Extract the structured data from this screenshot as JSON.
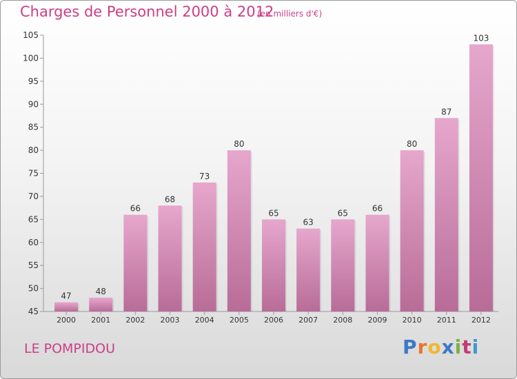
{
  "header": {
    "title": "Charges de Personnel 2000 à 2012",
    "subtitle": "(en milliers d'€)"
  },
  "footer": {
    "place": "LE POMPIDOU",
    "brand_letters": [
      "P",
      "r",
      "o",
      "x",
      "i",
      "t",
      "i"
    ],
    "brand_colors": [
      "#3c78c8",
      "#e8742a",
      "#f2b72f",
      "#3c78c8",
      "#7bb342",
      "#c43a7a",
      "#3c9ad0"
    ]
  },
  "colors": {
    "bar_top": "#e6a7cd",
    "bar_bottom": "#b86c97",
    "text": "#333333",
    "accent": "#cc3d88"
  },
  "chart_data": {
    "type": "bar",
    "categories": [
      "2000",
      "2001",
      "2002",
      "2003",
      "2004",
      "2005",
      "2006",
      "2007",
      "2008",
      "2009",
      "2010",
      "2011",
      "2012"
    ],
    "values": [
      47,
      48,
      66,
      68,
      73,
      80,
      65,
      63,
      65,
      66,
      80,
      87,
      103
    ],
    "ylim": [
      45,
      105
    ],
    "yticks": [
      45,
      50,
      55,
      60,
      65,
      70,
      75,
      80,
      85,
      90,
      95,
      100,
      105
    ],
    "grid": false,
    "data_labels": true
  }
}
